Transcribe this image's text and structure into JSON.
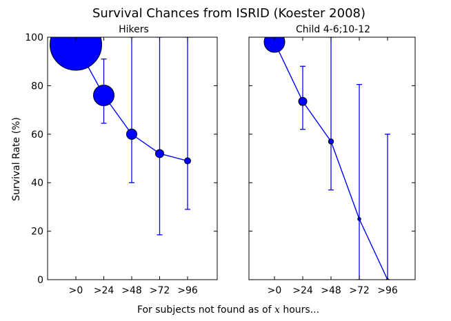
{
  "figure": {
    "title": "Survival Chances from ISRID (Koester 2008)",
    "ylabel": "Survival Rate (%)",
    "xlabel_prefix": "For subjects not found as of ",
    "xlabel_var": "x",
    "xlabel_suffix": " hours..."
  },
  "chart_data": [
    {
      "type": "line",
      "title": "Hikers",
      "categories": [
        ">0",
        ">24",
        ">48",
        ">72",
        ">96"
      ],
      "series": [
        {
          "values": [
            97,
            76,
            60,
            52,
            49
          ],
          "err_low": [
            null,
            64.5,
            40,
            18.5,
            29
          ],
          "err_high": [
            null,
            91,
            100,
            100,
            100
          ],
          "marker_size_level": [
            5,
            2,
            1,
            0.8,
            0.6
          ]
        }
      ],
      "ylim": [
        0,
        100
      ],
      "yticks": [
        0,
        20,
        40,
        60,
        80,
        100
      ],
      "ytick_labels": [
        "0",
        "20",
        "40",
        "60",
        "80",
        "100"
      ],
      "color": "#0000ff"
    },
    {
      "type": "line",
      "title": "Child 4-6;10-12",
      "categories": [
        ">0",
        ">24",
        ">48",
        ">72",
        ">96"
      ],
      "series": [
        {
          "values": [
            98,
            73.5,
            57,
            25,
            0
          ],
          "err_low": [
            null,
            62,
            37,
            0,
            0
          ],
          "err_high": [
            null,
            88,
            100,
            80.5,
            60
          ],
          "marker_size_level": [
            2,
            0.8,
            0.5,
            0.3,
            0.2
          ]
        }
      ],
      "ylim": [
        0,
        100
      ],
      "yticks": [
        0,
        20,
        40,
        60,
        80,
        100
      ],
      "color": "#0000ff"
    }
  ]
}
